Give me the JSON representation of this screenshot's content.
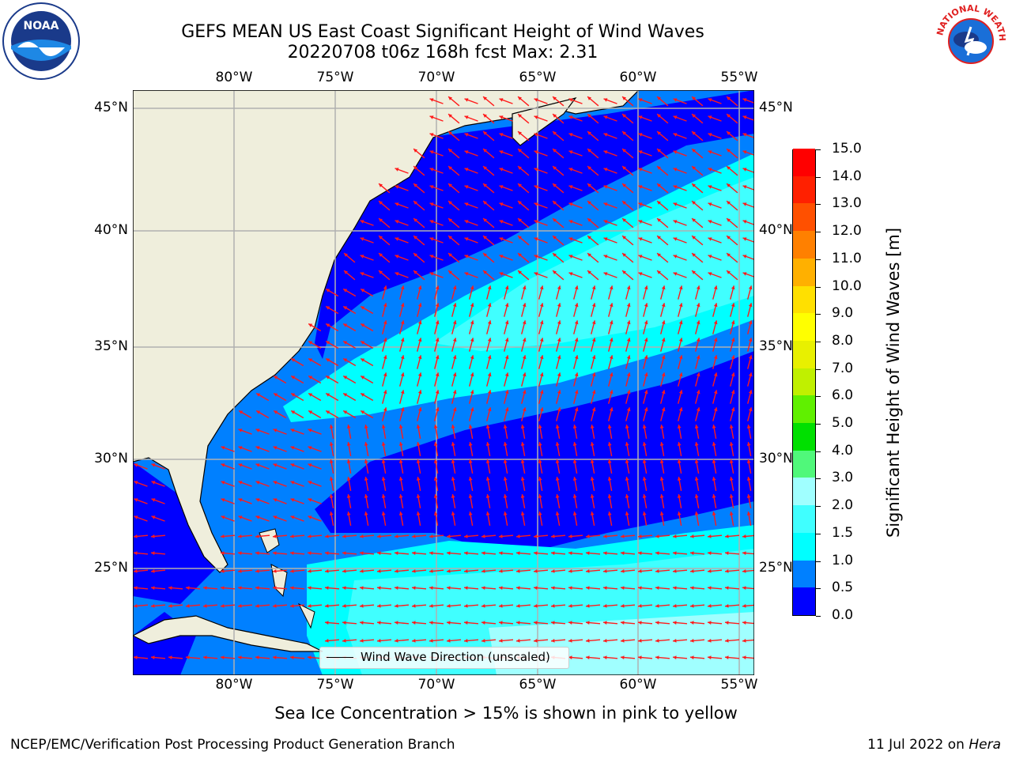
{
  "title": {
    "line1": "GEFS MEAN US East Coast Significant Height of Wind Waves",
    "line2": "20220708 t06z 168h fcst   Max: 2.31"
  },
  "logos": {
    "left": "NOAA",
    "right": "NATIONAL WEATHER SERVICE"
  },
  "map": {
    "lon_labels": [
      "80°W",
      "75°W",
      "70°W",
      "65°W",
      "60°W",
      "55°W"
    ],
    "lat_labels": [
      "45°N",
      "40°N",
      "35°N",
      "30°N",
      "25°N"
    ],
    "legend_label": "Wind Wave Direction (unscaled)",
    "extent": {
      "lon": [
        -85,
        -54
      ],
      "lat": [
        20.5,
        46
      ]
    },
    "colors": {
      "land": "#efeedc",
      "grid": "#b0b0b0",
      "arrow": "#ff1a1a",
      "coast": "#000000"
    }
  },
  "colorbar": {
    "label": "Significant Height of Wind Waves [m]",
    "ticks": [
      "0.0",
      "0.5",
      "1.0",
      "1.5",
      "2.0",
      "3.0",
      "4.0",
      "5.0",
      "6.0",
      "7.0",
      "8.0",
      "9.0",
      "10.0",
      "11.0",
      "12.0",
      "13.0",
      "14.0",
      "15.0"
    ],
    "colors": [
      "#0000ff",
      "#0080ff",
      "#00ffff",
      "#40ffff",
      "#a0ffff",
      "#50f87a",
      "#00e000",
      "#60f000",
      "#c0f000",
      "#e8f000",
      "#ffff00",
      "#ffe000",
      "#ffb000",
      "#ff8000",
      "#ff5000",
      "#ff2000",
      "#ff0000"
    ]
  },
  "footnote": "Sea Ice Concentration > 15% is shown in pink to yellow",
  "footer": {
    "left": "NCEP/EMC/Verification Post Processing Product Generation Branch",
    "right_date": "11 Jul 2022 on ",
    "right_machine": "Hera"
  }
}
